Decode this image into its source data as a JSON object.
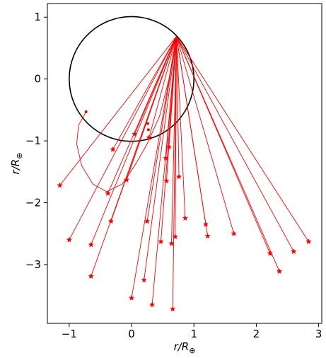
{
  "chart_data": {
    "type": "scatter",
    "title": "",
    "xlabel": "r/R",
    "ylabel": "r/R",
    "label_subscript": "⊕",
    "xlim": [
      -1.35,
      3.05
    ],
    "ylim": [
      -3.95,
      1.22
    ],
    "xticks": [
      -1,
      0,
      1,
      2,
      3
    ],
    "yticks": [
      -3,
      -2,
      -1,
      0,
      1
    ],
    "xtick_labels": [
      "−1",
      "0",
      "1",
      "2",
      "3"
    ],
    "ytick_labels": [
      "−3",
      "−2",
      "−1",
      "0",
      "1"
    ],
    "grid": false,
    "colors": {
      "lines": "#ff0000",
      "circle": "#000000",
      "axes": "#000000"
    },
    "circle": {
      "center": [
        0,
        0
      ],
      "radius": 1
    },
    "source": {
      "x": 0.72,
      "y": 0.69
    },
    "endpoints": [
      {
        "x": -1.15,
        "y": -1.72
      },
      {
        "x": -1.0,
        "y": -2.6
      },
      {
        "x": -0.65,
        "y": -2.68
      },
      {
        "x": -0.65,
        "y": -3.19
      },
      {
        "x": -0.3,
        "y": -1.14
      },
      {
        "x": -0.38,
        "y": -1.85
      },
      {
        "x": -0.33,
        "y": -2.3
      },
      {
        "x": -0.08,
        "y": -1.63
      },
      {
        "x": 0.05,
        "y": -0.89
      },
      {
        "x": 0.0,
        "y": -3.54
      },
      {
        "x": 0.2,
        "y": -3.25
      },
      {
        "x": 0.25,
        "y": -2.3
      },
      {
        "x": 0.28,
        "y": -0.95
      },
      {
        "x": 0.33,
        "y": -3.65
      },
      {
        "x": 0.47,
        "y": -2.63
      },
      {
        "x": 0.55,
        "y": -1.28
      },
      {
        "x": 0.56,
        "y": -1.65
      },
      {
        "x": 0.6,
        "y": -1.1
      },
      {
        "x": 0.64,
        "y": -2.66
      },
      {
        "x": 0.66,
        "y": -3.72
      },
      {
        "x": 0.7,
        "y": -2.55
      },
      {
        "x": 0.76,
        "y": -1.58
      },
      {
        "x": 0.86,
        "y": -2.25
      },
      {
        "x": 1.19,
        "y": -2.35
      },
      {
        "x": 1.22,
        "y": -2.54
      },
      {
        "x": 1.64,
        "y": -2.5
      },
      {
        "x": 2.22,
        "y": -2.82
      },
      {
        "x": 2.37,
        "y": -3.11
      },
      {
        "x": 2.6,
        "y": -2.79
      },
      {
        "x": 2.84,
        "y": -2.63
      }
    ],
    "small_markers": [
      {
        "x": 0.26,
        "y": -0.72
      },
      {
        "x": 0.27,
        "y": -0.82
      }
    ],
    "trajectory": {
      "start": {
        "x": -0.73,
        "y": -0.53
      },
      "points": [
        [
          -0.73,
          -0.53
        ],
        [
          -0.85,
          -0.75
        ],
        [
          -0.88,
          -1.05
        ],
        [
          -0.8,
          -1.4
        ],
        [
          -0.62,
          -1.7
        ],
        [
          -0.4,
          -1.82
        ],
        [
          -0.15,
          -1.7
        ],
        [
          0.05,
          -1.4
        ],
        [
          0.25,
          -1.05
        ],
        [
          0.45,
          -0.6
        ],
        [
          0.6,
          0.0
        ],
        [
          0.72,
          0.69
        ]
      ]
    }
  }
}
